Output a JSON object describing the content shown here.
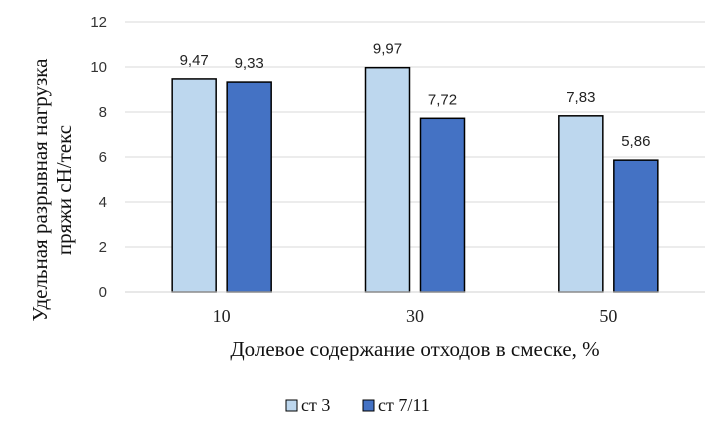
{
  "chart_data": {
    "type": "bar",
    "categories": [
      "10",
      "30",
      "50"
    ],
    "series": [
      {
        "name": "ст 3",
        "color": "#bdd7ee",
        "values": [
          9.47,
          9.97,
          7.83
        ],
        "labels": [
          "9,47",
          "9,97",
          "7,83"
        ]
      },
      {
        "name": "ст 7/11",
        "color": "#4472c4",
        "values": [
          9.33,
          7.72,
          5.86
        ],
        "labels": [
          "9,33",
          "7,72",
          "5,86"
        ]
      }
    ],
    "xlabel": "Долевое содержание отходов в смеске, %",
    "ylabel": [
      "Удельная разрывная нагрузка",
      "пряжи сН/текс"
    ],
    "ylim": [
      0,
      12
    ],
    "yticks": [
      "0",
      "2",
      "4",
      "6",
      "8",
      "10",
      "12"
    ],
    "grid": true,
    "legend_position": "bottom"
  }
}
